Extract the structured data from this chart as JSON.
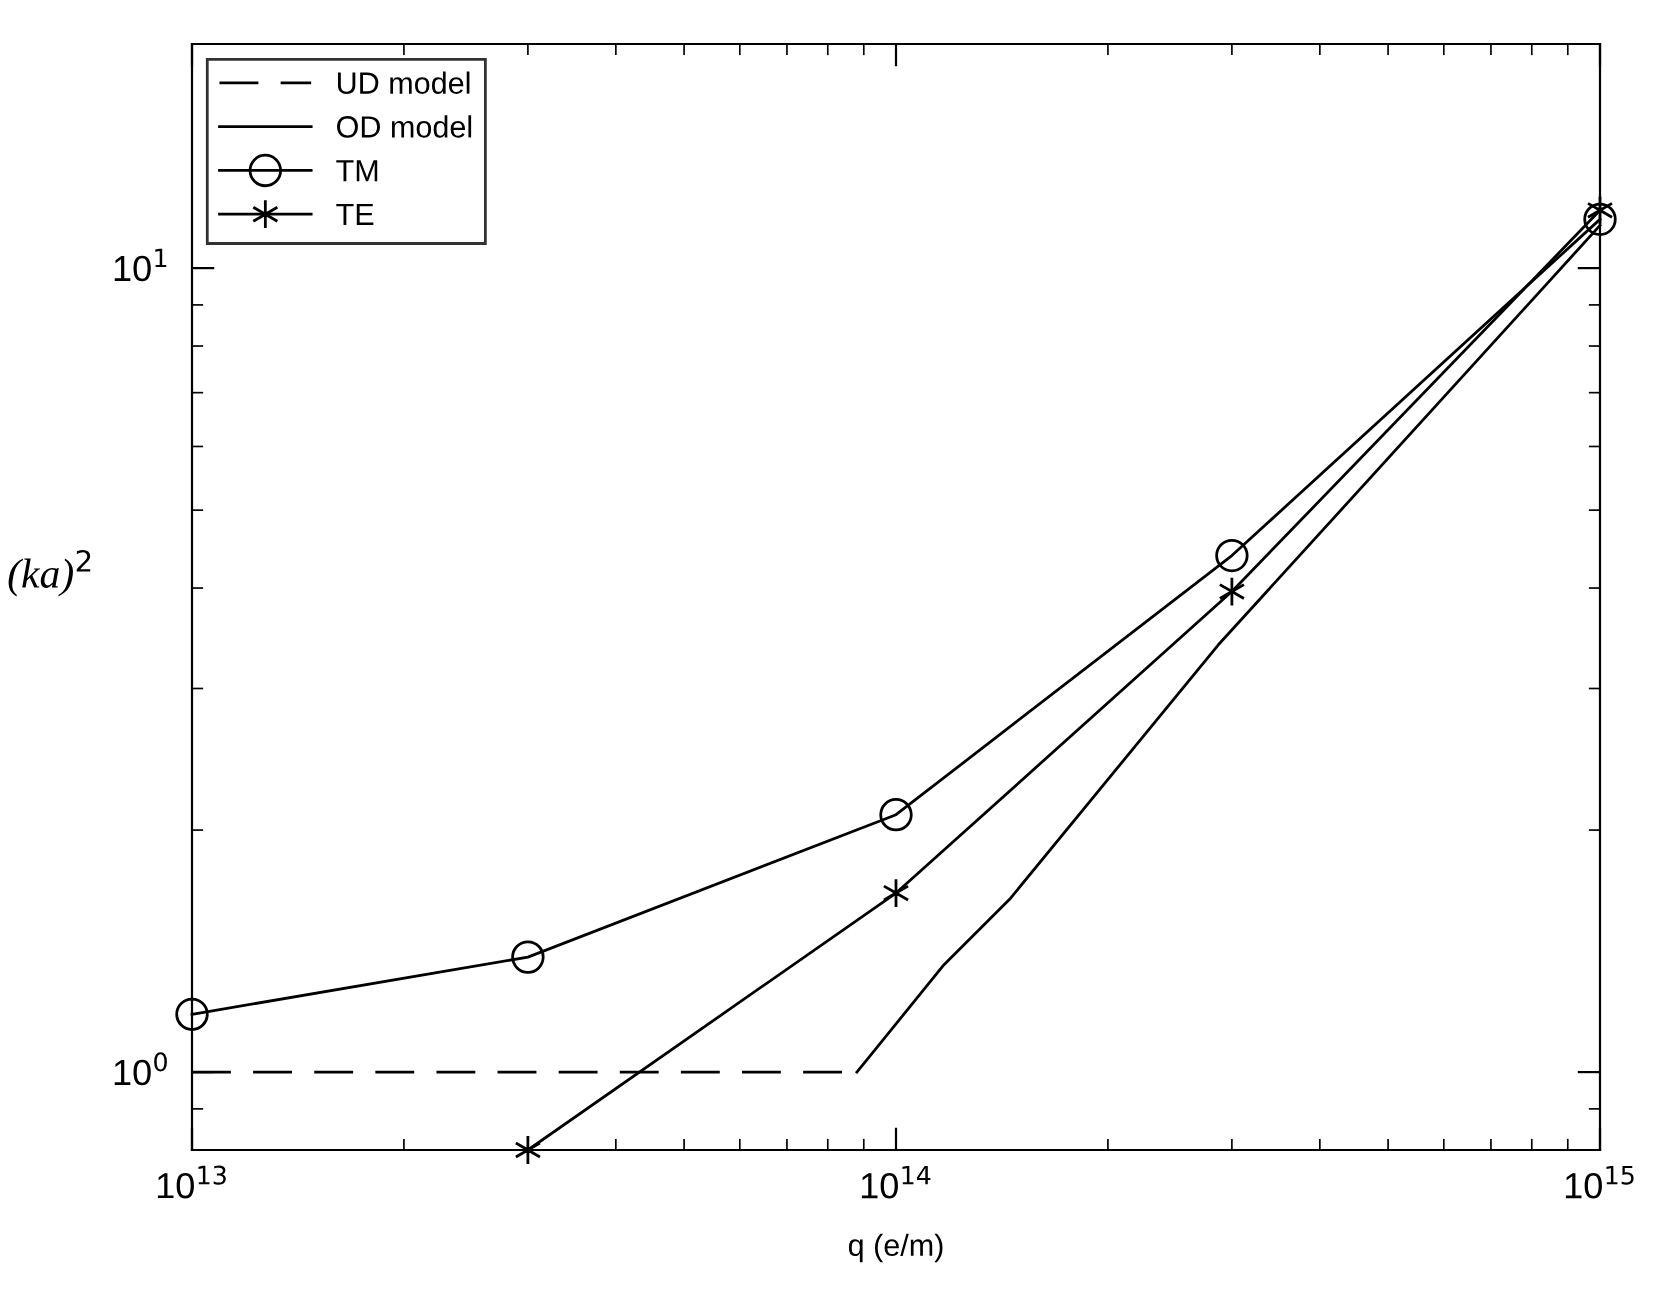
{
  "chart_data": {
    "type": "line",
    "xlabel": "q (e/m)",
    "ylabel": "(ka)$^{2}$",
    "log": "xy",
    "xlim": [
      10000000000000.0,
      1000000000000000.0
    ],
    "xticks": [
      {
        "value": 10000000000000.0,
        "label": "10$^{13}$"
      },
      {
        "value": 100000000000000.0,
        "label": "10$^{14}$"
      },
      {
        "value": 1000000000000000.0,
        "label": "10$^{15}$"
      }
    ],
    "ylim": [
      0.8,
      19
    ],
    "yticks": [
      {
        "value": 1,
        "label": "10$^{0}$"
      },
      {
        "value": 10,
        "label": "10$^{1}$"
      }
    ],
    "grid": false,
    "legend": "top left",
    "series": [
      {
        "name": "UD model",
        "color": "#000000",
        "line_style": "dashed",
        "marker": "none",
        "x": [
          10000000000000.0,
          88000000000000.0
        ],
        "values": [
          1,
          1
        ]
      },
      {
        "name": "OD model",
        "color": "#000000",
        "line_style": "solid",
        "marker": "none",
        "x": [
          88000000000000.0,
          117000000000000.0,
          145000000000000.0,
          287000000000000.0,
          1000000000000000.0
        ],
        "values": [
          1,
          1.36,
          1.64,
          3.4,
          11.3
        ]
      },
      {
        "name": "TM",
        "color": "#000000",
        "line_style": "solid",
        "marker": "circle",
        "x": [
          10000000000000.0,
          30000000000000.0,
          100000000000000.0,
          300000000000000.0,
          1000000000000000.0
        ],
        "values": [
          1.18,
          1.39,
          2.09,
          4.39,
          11.5
        ]
      },
      {
        "name": "TE",
        "color": "#000000",
        "line_style": "solid",
        "marker": "cross",
        "x": [
          30000000000000.0,
          100000000000000.0,
          300000000000000.0,
          1000000000000000.0
        ],
        "values": [
          0.8,
          1.67,
          3.96,
          11.8
        ]
      }
    ]
  }
}
